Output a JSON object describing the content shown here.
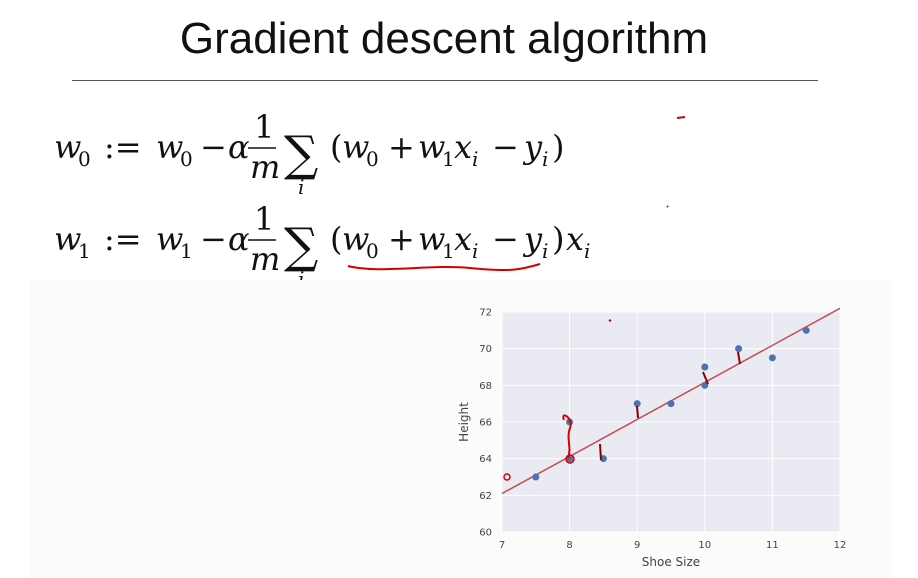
{
  "slide": {
    "title": "Gradient descent algorithm"
  },
  "equations": {
    "eq1": {
      "lhs_w": "w",
      "lhs_sub": "0",
      "assign": ":=",
      "rhs_w": "w",
      "rhs_sub": "0",
      "minus": "−",
      "alpha": "α",
      "frac_num": "1",
      "frac_den": "m",
      "sigma": "∑",
      "sigma_sub": "i",
      "paren_open": "(",
      "w0_w": "w",
      "w0_sub": "0",
      "plus": "+",
      "w1_w": "w",
      "w1_sub": "1",
      "x": "x",
      "x_sub": "i",
      "minus2": "−",
      "y": "y",
      "y_sub": "i",
      "paren_close": ")"
    },
    "eq2": {
      "lhs_w": "w",
      "lhs_sub": "1",
      "assign": ":=",
      "rhs_w": "w",
      "rhs_sub": "1",
      "minus": "−",
      "alpha": "α",
      "frac_num": "1",
      "frac_den": "m",
      "sigma": "∑",
      "sigma_sub": "i",
      "paren_open": "(",
      "w0_w": "w",
      "w0_sub": "0",
      "plus": "+",
      "w1_w": "w",
      "w1_sub": "1",
      "x": "x",
      "x_sub": "i",
      "minus2": "−",
      "y": "y",
      "y_sub": "i",
      "paren_close": ")",
      "x_tail": "x",
      "x_tail_sub": "i"
    }
  },
  "chart_data": {
    "type": "scatter",
    "xlabel": "Shoe Size",
    "ylabel": "Height",
    "xlim": [
      7,
      12
    ],
    "ylim": [
      60,
      72
    ],
    "xticks": [
      "7",
      "8",
      "9",
      "10",
      "11",
      "12"
    ],
    "yticks": [
      "60",
      "62",
      "64",
      "66",
      "68",
      "70",
      "72"
    ],
    "points": [
      {
        "x": 7.5,
        "y": 63
      },
      {
        "x": 8,
        "y": 66
      },
      {
        "x": 8,
        "y": 64
      },
      {
        "x": 8.5,
        "y": 64
      },
      {
        "x": 9,
        "y": 67
      },
      {
        "x": 9.5,
        "y": 67
      },
      {
        "x": 10,
        "y": 69
      },
      {
        "x": 10,
        "y": 68
      },
      {
        "x": 10.5,
        "y": 70
      },
      {
        "x": 11,
        "y": 69.5
      },
      {
        "x": 11.5,
        "y": 71
      }
    ],
    "fit_line": {
      "x": [
        7,
        12
      ],
      "y": [
        62.1,
        72.2
      ]
    },
    "grid": true,
    "colors": {
      "background": "#eaeaf2",
      "point": "#4c72b0",
      "fit_line": "#c44e52",
      "grid": "#ffffff"
    }
  },
  "annotations": {
    "ink_color": "#d40000"
  }
}
